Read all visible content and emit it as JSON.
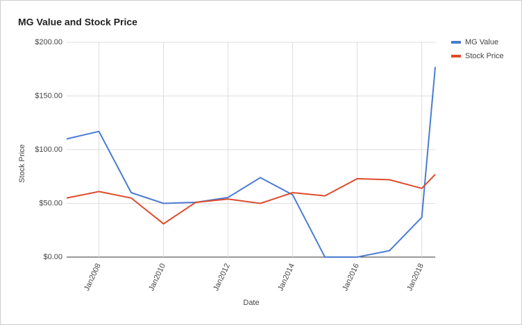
{
  "chart_data": {
    "type": "line",
    "title": "MG Value and Stock Price",
    "x_label": "Date",
    "y_label": "Stock Price",
    "x": [
      "2007-01",
      "2008-01",
      "2009-01",
      "2010-01",
      "2011-01",
      "2012-01",
      "2013-01",
      "2014-01",
      "2015-01",
      "2016-01",
      "2017-01",
      "2018-01",
      "2018-06"
    ],
    "series": [
      {
        "name": "MG Value",
        "color": "#4a7bd1",
        "values": [
          110,
          117,
          60,
          50,
          51,
          55.5,
          74,
          58,
          0,
          0,
          6,
          37,
          177
        ]
      },
      {
        "name": "Stock Price",
        "color": "#dd4b2a",
        "values": [
          55,
          61,
          55,
          31,
          51,
          54,
          50,
          60,
          57,
          73,
          72,
          64,
          77
        ]
      }
    ],
    "xlim": [
      "2007-01",
      "2018-06"
    ],
    "xticks": [
      {
        "value": "2008-01",
        "label": "Jan2008"
      },
      {
        "value": "2010-01",
        "label": "Jan2010"
      },
      {
        "value": "2012-01",
        "label": "Jan2012"
      },
      {
        "value": "2014-01",
        "label": "Jan2014"
      },
      {
        "value": "2016-01",
        "label": "Jan2016"
      },
      {
        "value": "2018-01",
        "label": "Jan2018"
      }
    ],
    "ylim": [
      0,
      200
    ],
    "yticks": [
      {
        "value": 0,
        "label": "$0.00"
      },
      {
        "value": 50,
        "label": "$50.00"
      },
      {
        "value": 100,
        "label": "$100.00"
      },
      {
        "value": 150,
        "label": "$150.00"
      },
      {
        "value": 200,
        "label": "$200.00"
      }
    ],
    "grid": true,
    "legend": "right"
  }
}
